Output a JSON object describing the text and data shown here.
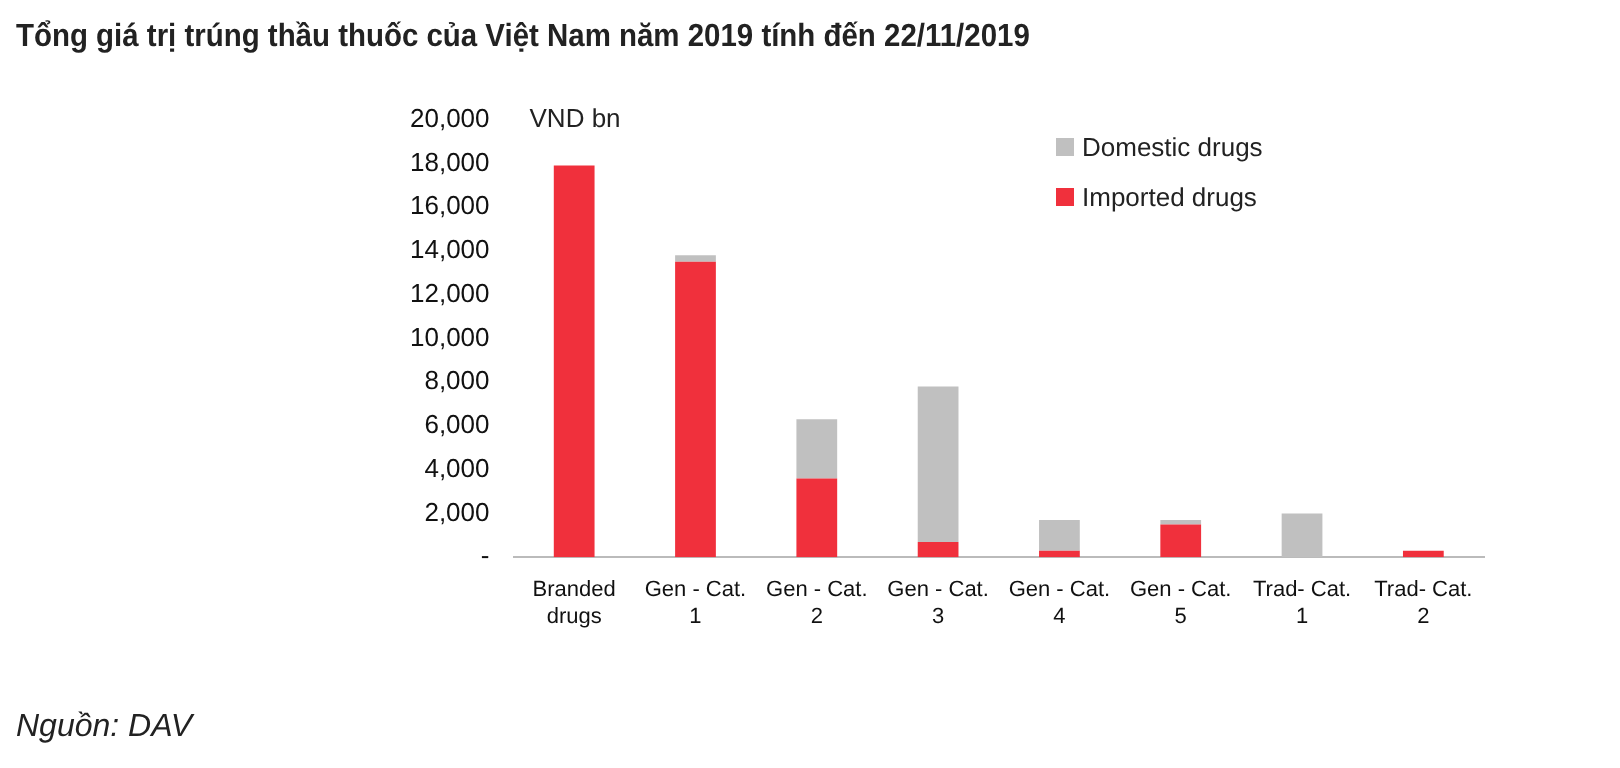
{
  "chart_data": {
    "type": "bar",
    "title": "Tổng giá trị trúng thầu thuốc của Việt Nam năm 2019 tính đến 22/11/2019",
    "ylabel": "VND bn",
    "categories": [
      "Branded drugs",
      "Gen - Cat. 1",
      "Gen - Cat. 2",
      "Gen - Cat. 3",
      "Gen - Cat. 4",
      "Gen - Cat. 5",
      "Trad- Cat. 1",
      "Trad- Cat. 2"
    ],
    "series": [
      {
        "name": "Imported drugs",
        "color": "#f0303c",
        "values": [
          17900,
          13500,
          3600,
          700,
          300,
          1500,
          0,
          300
        ]
      },
      {
        "name": "Domestic drugs",
        "color": "#c0c0c0",
        "values": [
          0,
          300,
          2700,
          7100,
          1400,
          200,
          2000,
          0
        ]
      }
    ],
    "stacked": true,
    "ylim": [
      0,
      20000
    ],
    "yticks": [
      {
        "value": 0,
        "label": "-"
      },
      {
        "value": 2000,
        "label": "2,000"
      },
      {
        "value": 4000,
        "label": "4,000"
      },
      {
        "value": 6000,
        "label": "6,000"
      },
      {
        "value": 8000,
        "label": "8,000"
      },
      {
        "value": 10000,
        "label": "10,000"
      },
      {
        "value": 12000,
        "label": "12,000"
      },
      {
        "value": 14000,
        "label": "14,000"
      },
      {
        "value": 16000,
        "label": "16,000"
      },
      {
        "value": 18000,
        "label": "18,000"
      },
      {
        "value": 20000,
        "label": "20,000"
      }
    ],
    "grid": false,
    "legend": "top right",
    "annotations": [
      "Nguồn: DAV"
    ]
  }
}
